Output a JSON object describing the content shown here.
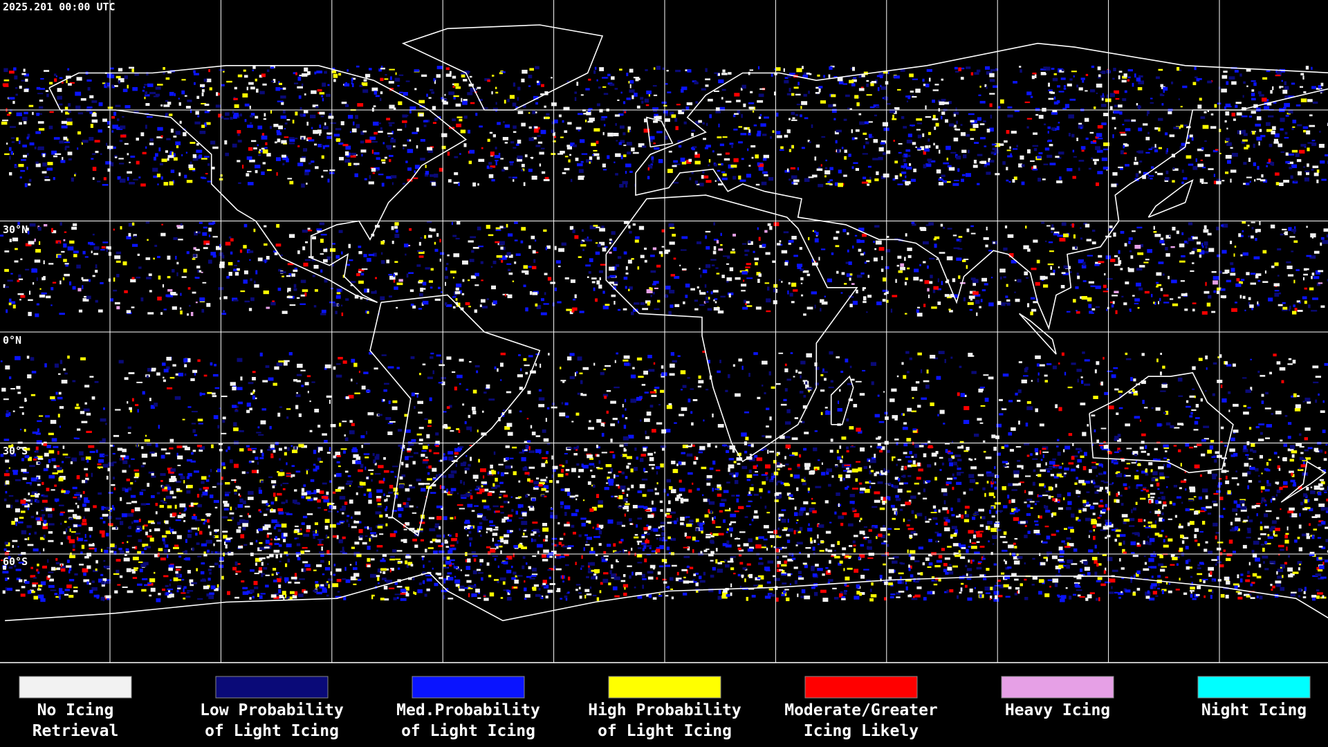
{
  "header": {
    "timestamp": "2025.201 00:00 UTC"
  },
  "map": {
    "lat_labels": [
      "30°N",
      "0°N",
      "30°S",
      "60°S"
    ]
  },
  "legend": [
    {
      "lines": [
        "No Icing",
        "Retrieval"
      ],
      "color": "#f2f2f2"
    },
    {
      "lines": [
        "Low Probability",
        "of Light Icing"
      ],
      "color": "#0a0a78"
    },
    {
      "lines": [
        "Med.Probability",
        "of Light Icing"
      ],
      "color": "#0a14ff"
    },
    {
      "lines": [
        "High Probability",
        "of Light Icing"
      ],
      "color": "#ffff00"
    },
    {
      "lines": [
        "Moderate/Greater",
        "Icing Likely"
      ],
      "color": "#ff0000"
    },
    {
      "lines": [
        "Heavy Icing"
      ],
      "color": "#e6a0e6"
    },
    {
      "lines": [
        "Night Icing"
      ],
      "color": "#00ffff"
    }
  ]
}
